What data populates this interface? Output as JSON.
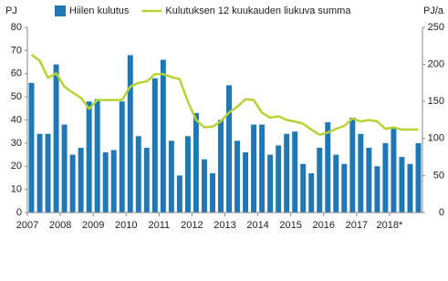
{
  "chart_data": {
    "type": "bar-line",
    "y_unit": "PJ",
    "y2_unit": "PJ/a",
    "categories": [
      "2007",
      null,
      null,
      null,
      "2008",
      null,
      null,
      null,
      "2009",
      null,
      null,
      null,
      "2010",
      null,
      null,
      null,
      "2011",
      null,
      null,
      null,
      "2012",
      null,
      null,
      null,
      "2013",
      null,
      null,
      null,
      "2014",
      null,
      null,
      null,
      "2015",
      null,
      null,
      null,
      "2016",
      null,
      null,
      null,
      "2017",
      null,
      null,
      null,
      "2018*",
      null,
      null,
      null
    ],
    "series": [
      {
        "name": "Hiilen kulutus",
        "type": "bar",
        "color": "#1f77b4",
        "values": [
          56,
          34,
          34,
          64,
          38,
          25,
          28,
          48,
          49,
          26,
          27,
          48,
          68,
          33,
          28,
          58,
          66,
          31,
          16,
          33,
          43,
          23,
          17,
          40,
          55,
          31,
          26,
          38,
          38,
          25,
          29,
          34,
          35,
          21,
          17,
          28,
          39,
          25,
          21,
          41,
          34,
          28,
          20,
          30,
          37,
          24,
          21,
          30
        ]
      },
      {
        "name": "Kulutuksen 12 kuukauden liukuva summa",
        "type": "line",
        "axis": "y2",
        "color": "#b5d334",
        "values": [
          213,
          205,
          182,
          188,
          170,
          162,
          155,
          140,
          152,
          152,
          152,
          152,
          170,
          175,
          177,
          187,
          187,
          183,
          180,
          150,
          125,
          115,
          116,
          123,
          135,
          143,
          153,
          152,
          135,
          128,
          130,
          125,
          123,
          120,
          112,
          105,
          108,
          113,
          117,
          127,
          123,
          125,
          123,
          113,
          115,
          112,
          112,
          112
        ]
      }
    ],
    "ylim": [
      0,
      80
    ],
    "yticks": [
      0,
      10,
      20,
      30,
      40,
      50,
      60,
      70,
      80
    ],
    "y2lim": [
      0,
      250
    ],
    "y2ticks": [
      0,
      50,
      100,
      150,
      200,
      250
    ],
    "grid": false
  }
}
